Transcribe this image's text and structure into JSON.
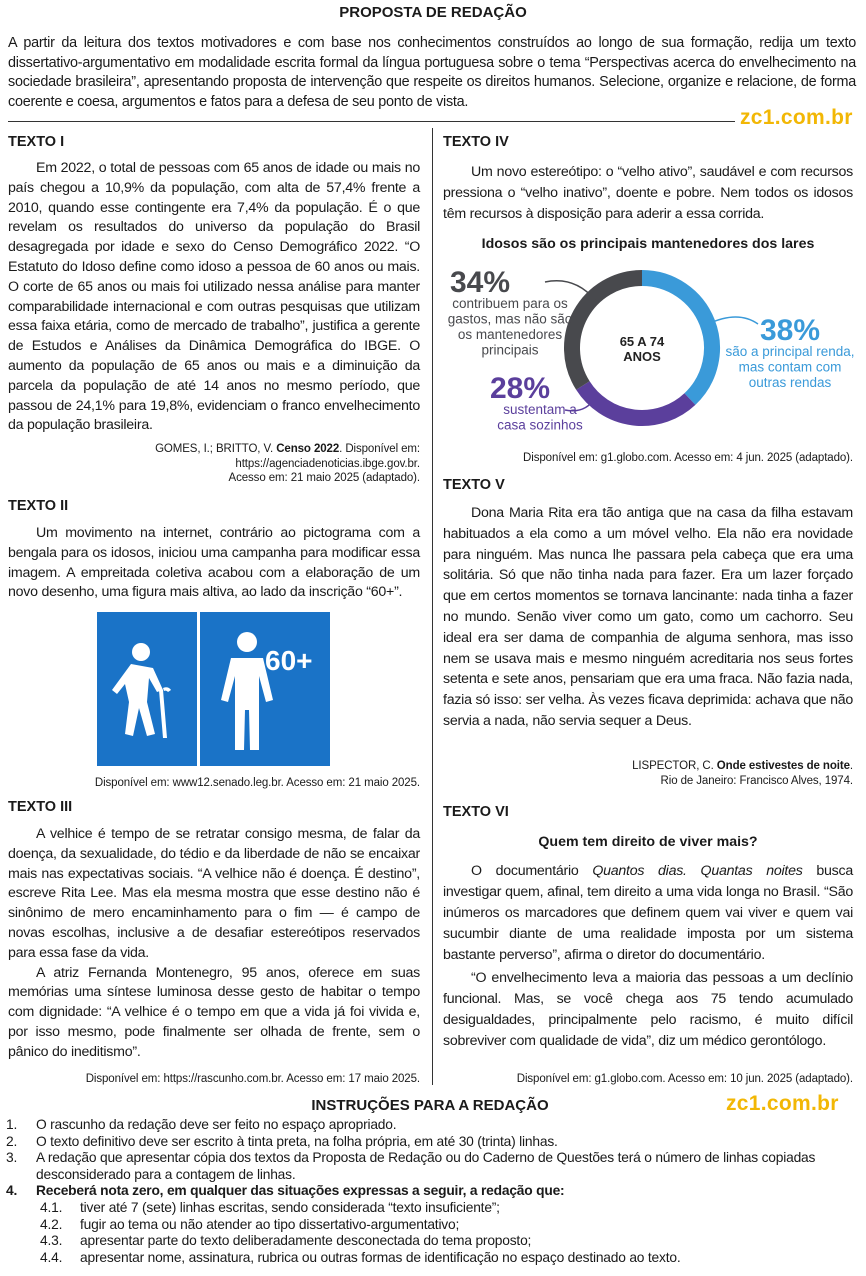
{
  "header": {
    "title": "PROPOSTA DE REDAÇÃO",
    "intro": "A partir da leitura dos textos motivadores e com base nos conhecimentos construídos ao longo de sua formação, redija um texto dissertativo-argumentativo em modalidade escrita formal da língua portuguesa sobre o tema “Perspectivas acerca do envelhecimento na sociedade brasileira”, apresentando proposta de intervenção que respeite os direitos humanos. Selecione, organize e relacione, de forma coerente e coesa, argumentos e fatos para a defesa de seu ponto de vista.",
    "watermark": "zc1.com.br"
  },
  "texto1": {
    "heading": "TEXTO I",
    "paragraph": "Em 2022, o total de pessoas com 65 anos de idade ou mais no país chegou a 10,9% da população, com alta de 57,4% frente a 2010, quando esse contingente era 7,4% da população. É o que revelam os resultados do universo da população do Brasil desagregada por idade e sexo do Censo Demográfico 2022. “O Estatuto do Idoso define como idoso a pessoa de 60 anos ou mais. O corte de 65 anos ou mais foi utilizado nessa análise para manter comparabilidade internacional e com outras pesquisas que utilizam essa faixa etária, como de mercado de trabalho”, justifica a gerente de Estudos e Análises da Dinâmica Demográfica do IBGE. O aumento da população de 65 anos ou mais e a diminuição da parcela da população de até 14 anos no mesmo período, que passou de 24,1% para 19,8%, evidenciam o franco envelhecimento da população brasileira.",
    "cite_pre": "GOMES, I.; BRITTO, V. ",
    "cite_bold": "Censo 2022",
    "cite_post": ". Disponível em:",
    "cite_line2": "https://agenciadenoticias.ibge.gov.br.",
    "cite_line3": "Acesso em: 21 maio 2025 (adaptado)."
  },
  "texto2": {
    "heading": "TEXTO II",
    "paragraph": "Um movimento na internet, contrário ao pictograma com a bengala para os idosos, iniciou uma campanha para modificar essa imagem. A empreitada coletiva acabou com a elaboração de um novo desenho, uma figura mais altiva, ao lado da inscrição “60+”.",
    "badge": "60+",
    "colors": {
      "panel": "#1a73c7"
    },
    "cite": "Disponível em: www12.senado.leg.br. Acesso em: 21 maio 2025."
  },
  "texto3": {
    "heading": "TEXTO III",
    "paragraphs": [
      "A velhice é tempo de se retratar consigo mesma, de falar da doença, da sexualidade, do tédio e da liberdade de não se encaixar mais nas expectativas sociais. “A velhice não é doença. É destino”, escreve Rita Lee. Mas ela mesma mostra que esse destino não é sinônimo de mero encaminhamento para o fim — é campo de novas escolhas, inclusive a de desafiar estereótipos reservados para essa fase da vida.",
      "A atriz Fernanda Montenegro, 95 anos, oferece em suas memórias uma síntese luminosa desse gesto de habitar o tempo com dignidade: “A velhice é o tempo em que a vida já foi vivida e, por isso mesmo, pode finalmente ser olhada de frente, sem o pânico do ineditismo”."
    ],
    "cite": "Disponível em: https://rascunho.com.br. Acesso em: 17 maio 2025."
  },
  "texto4": {
    "heading": "TEXTO IV",
    "paragraph": "Um novo estereótipo: o “velho ativo”, saudável e com recursos pressiona o “velho inativo”, doente e pobre. Nem todos os idosos têm recursos à disposição para aderir a essa corrida.",
    "cite": "Disponível em: g1.globo.com. Acesso em: 4 jun. 2025 (adaptado)."
  },
  "chart_data": {
    "type": "pie",
    "title": "Idosos são os principais mantenedores dos lares",
    "center_label": [
      "65 A 74",
      "ANOS"
    ],
    "slices": [
      {
        "value": 38,
        "label": "38%",
        "text": [
          "são a principal renda,",
          "mas contam com",
          "outras rendas"
        ],
        "color": "#3a9ad9"
      },
      {
        "value": 28,
        "label": "28%",
        "text": [
          "sustentam a",
          "casa sozinhos"
        ],
        "color": "#5b3f9c"
      },
      {
        "value": 34,
        "label": "34%",
        "text": [
          "contribuem para os",
          "gastos, mas não são",
          "os mantenedores",
          "principais"
        ],
        "color": "#48494d"
      }
    ]
  },
  "texto5": {
    "heading": "TEXTO V",
    "paragraph": "Dona Maria Rita era tão antiga que na casa da filha estavam habituados a ela como a um móvel velho. Ela não era novidade para ninguém. Mas nunca lhe passara pela cabeça que era uma solitária. Só que não tinha nada para fazer. Era um lazer forçado que em certos momentos se tornava lancinante: nada tinha a fazer no mundo. Senão viver como um gato, como um cachorro. Seu ideal era ser dama de companhia de alguma senhora, mas isso nem se usava mais e mesmo ninguém acreditaria nos seus fortes setenta e sete anos, pensariam que era uma fraca. Não fazia nada, fazia só isso: ser velha. Às vezes ficava deprimida: achava que não servia a nada, não servia sequer a Deus.",
    "cite_pre": "LISPECTOR, C. ",
    "cite_bold": "Onde estivestes de noite",
    "cite_post": ".",
    "cite_line2": "Rio de Janeiro: Francisco Alves, 1974."
  },
  "texto6": {
    "heading": "TEXTO VI",
    "title": "Quem tem direito de viver mais?",
    "p1_pre": "O documentário ",
    "p1_italic": "Quantos dias. Quantas noites",
    "p1_post": " busca investigar quem, afinal, tem direito a uma vida longa no Brasil. “São inúmeros os marcadores que definem quem vai viver e quem vai sucumbir diante de uma realidade imposta por um sistema bastante perverso”, afirma o diretor do documentário.",
    "p2": "“O envelhecimento leva a maioria das pessoas a um declínio funcional. Mas, se você chega aos 75 tendo acumulado desigualdades, principalmente pelo racismo, é muito difícil sobreviver com qualidade de vida”, diz um médico gerontólogo.",
    "cite": "Disponível em: g1.globo.com. Acesso em: 10 jun. 2025 (adaptado)."
  },
  "instructions": {
    "title": "INSTRUÇÕES PARA A REDAÇÃO",
    "items": [
      {
        "n": "1.",
        "text": "O rascunho da redação deve ser feito no espaço apropriado."
      },
      {
        "n": "2.",
        "text": "O texto definitivo deve ser escrito à tinta preta, na folha própria, em até 30 (trinta) linhas."
      },
      {
        "n": "3.",
        "text": "A redação que apresentar cópia dos textos da Proposta de Redação ou do Caderno de Questões terá o número de linhas copiadas desconsiderado para a contagem de linhas."
      },
      {
        "n": "4.",
        "text": "Receberá nota zero, em qualquer das situações expressas a seguir, a redação que:"
      }
    ],
    "subitems": [
      {
        "n": "4.1.",
        "text": "tiver até 7 (sete) linhas escritas, sendo considerada “texto insuficiente”;"
      },
      {
        "n": "4.2.",
        "text": "fugir ao tema ou não atender ao tipo dissertativo-argumentativo;"
      },
      {
        "n": "4.3.",
        "text": "apresentar parte do texto deliberadamente desconectada do tema proposto;"
      },
      {
        "n": "4.4.",
        "text": "apresentar nome, assinatura, rubrica ou outras formas de identificação no espaço destinado ao texto."
      }
    ]
  }
}
